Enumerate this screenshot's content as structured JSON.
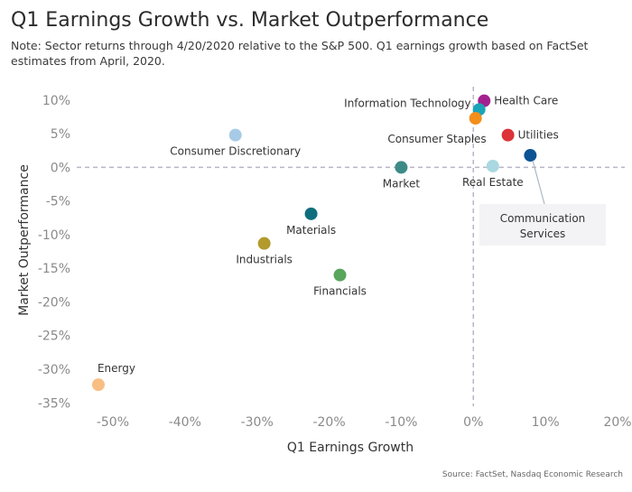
{
  "title": "Q1 Earnings Growth vs. Market Outperformance",
  "note": "Note: Sector returns through 4/20/2020 relative to the S&P 500. Q1 earnings growth based on FactSet estimates from April, 2020.",
  "source": "Source: FactSet, Nasdaq Economic Research",
  "chart_data": {
    "type": "scatter",
    "title": "Q1 Earnings Growth vs. Market Outperformance",
    "xlabel": "Q1 Earnings Growth",
    "ylabel": "Market Outperformance",
    "xlim": [
      -55,
      21
    ],
    "ylim": [
      -35.5,
      12
    ],
    "x_ticks": [
      -50,
      -40,
      -30,
      -20,
      -10,
      0,
      10,
      20
    ],
    "x_tick_labels": [
      "-50%",
      "-40%",
      "-30%",
      "-20%",
      "-10%",
      "0%",
      "10%",
      "20%"
    ],
    "y_ticks": [
      10,
      5,
      0,
      -5,
      -10,
      -15,
      -20,
      -25,
      -30,
      -35
    ],
    "y_tick_labels": [
      "10%",
      "5%",
      "0%",
      "-5%",
      "-10%",
      "-15%",
      "-20%",
      "-25%",
      "-30%",
      "-35%"
    ],
    "reference_lines": {
      "x": 0,
      "y": 0,
      "style": "dashed"
    },
    "points": [
      {
        "name": "Health Care",
        "x": 1.5,
        "y": 9.9,
        "color": "#a3218e",
        "label_pos": "right"
      },
      {
        "name": "Information Technology",
        "x": 0.8,
        "y": 8.6,
        "color": "#1aa4b8",
        "label_pos": "left-up"
      },
      {
        "name": "Consumer Staples",
        "x": 0.3,
        "y": 7.3,
        "color": "#f28e1c",
        "label_pos": "below-left"
      },
      {
        "name": "Utilities",
        "x": 4.8,
        "y": 4.8,
        "color": "#dc3338",
        "label_pos": "right"
      },
      {
        "name": "Communication Services",
        "x": 7.9,
        "y": 1.8,
        "color": "#0b5394",
        "label_pos": "callout"
      },
      {
        "name": "Real Estate",
        "x": 2.7,
        "y": 0.2,
        "color": "#a9d8e0",
        "label_pos": "below"
      },
      {
        "name": "Market",
        "x": -10.0,
        "y": 0.0,
        "color": "#3d8b88",
        "label_pos": "below"
      },
      {
        "name": "Consumer Discretionary",
        "x": -33.0,
        "y": 4.8,
        "color": "#a7cbe6",
        "label_pos": "below"
      },
      {
        "name": "Materials",
        "x": -22.5,
        "y": -6.9,
        "color": "#0e6e7d",
        "label_pos": "below"
      },
      {
        "name": "Industrials",
        "x": -29.0,
        "y": -11.3,
        "color": "#b39a2c",
        "label_pos": "below"
      },
      {
        "name": "Financials",
        "x": -18.5,
        "y": -16.0,
        "color": "#58a55c",
        "label_pos": "below"
      },
      {
        "name": "Energy",
        "x": -52.0,
        "y": -32.3,
        "color": "#f9be83",
        "label_pos": "above-right"
      }
    ]
  }
}
